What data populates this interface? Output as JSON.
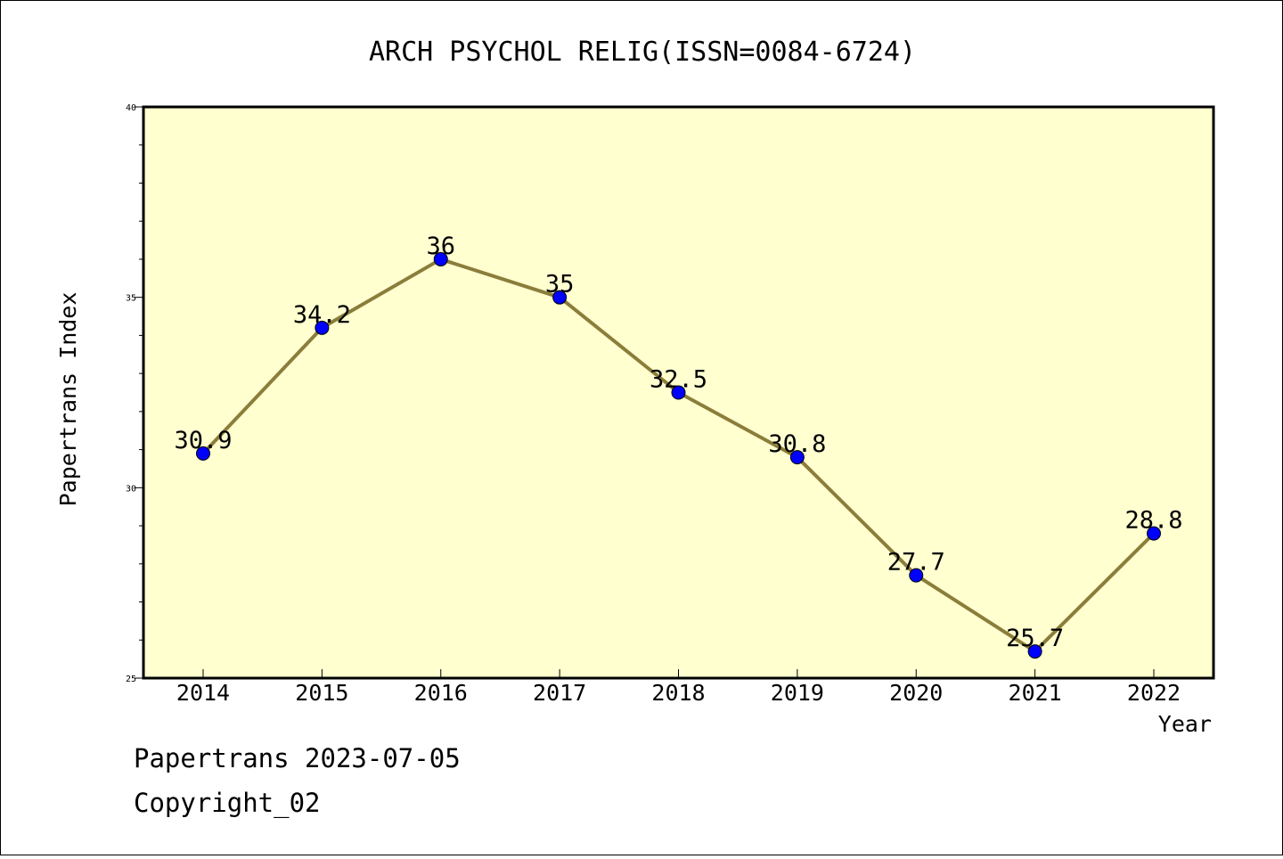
{
  "chart_data": {
    "type": "line",
    "title": "ARCH PSYCHOL RELIG(ISSN=0084-6724)",
    "xlabel": "Year",
    "ylabel": "Papertrans Index",
    "categories": [
      "2014",
      "2015",
      "2016",
      "2017",
      "2018",
      "2019",
      "2020",
      "2021",
      "2022"
    ],
    "values": [
      30.9,
      34.2,
      36,
      35,
      32.5,
      30.8,
      27.7,
      25.7,
      28.8
    ],
    "data_labels": [
      "30.9",
      "34.2",
      "36",
      "35",
      "32.5",
      "30.8",
      "27.7",
      "25.7",
      "28.8"
    ],
    "ylim": [
      25,
      40
    ],
    "yticks": [
      "25",
      "30",
      "35",
      "40"
    ],
    "grid": false,
    "legend": "none",
    "colors": {
      "line": "#8B7D3A",
      "marker": "#0000FF",
      "plot_background": "#FFFFD0"
    }
  },
  "footer": {
    "line1": "Papertrans 2023-07-05",
    "line2": "Copyright_02"
  }
}
